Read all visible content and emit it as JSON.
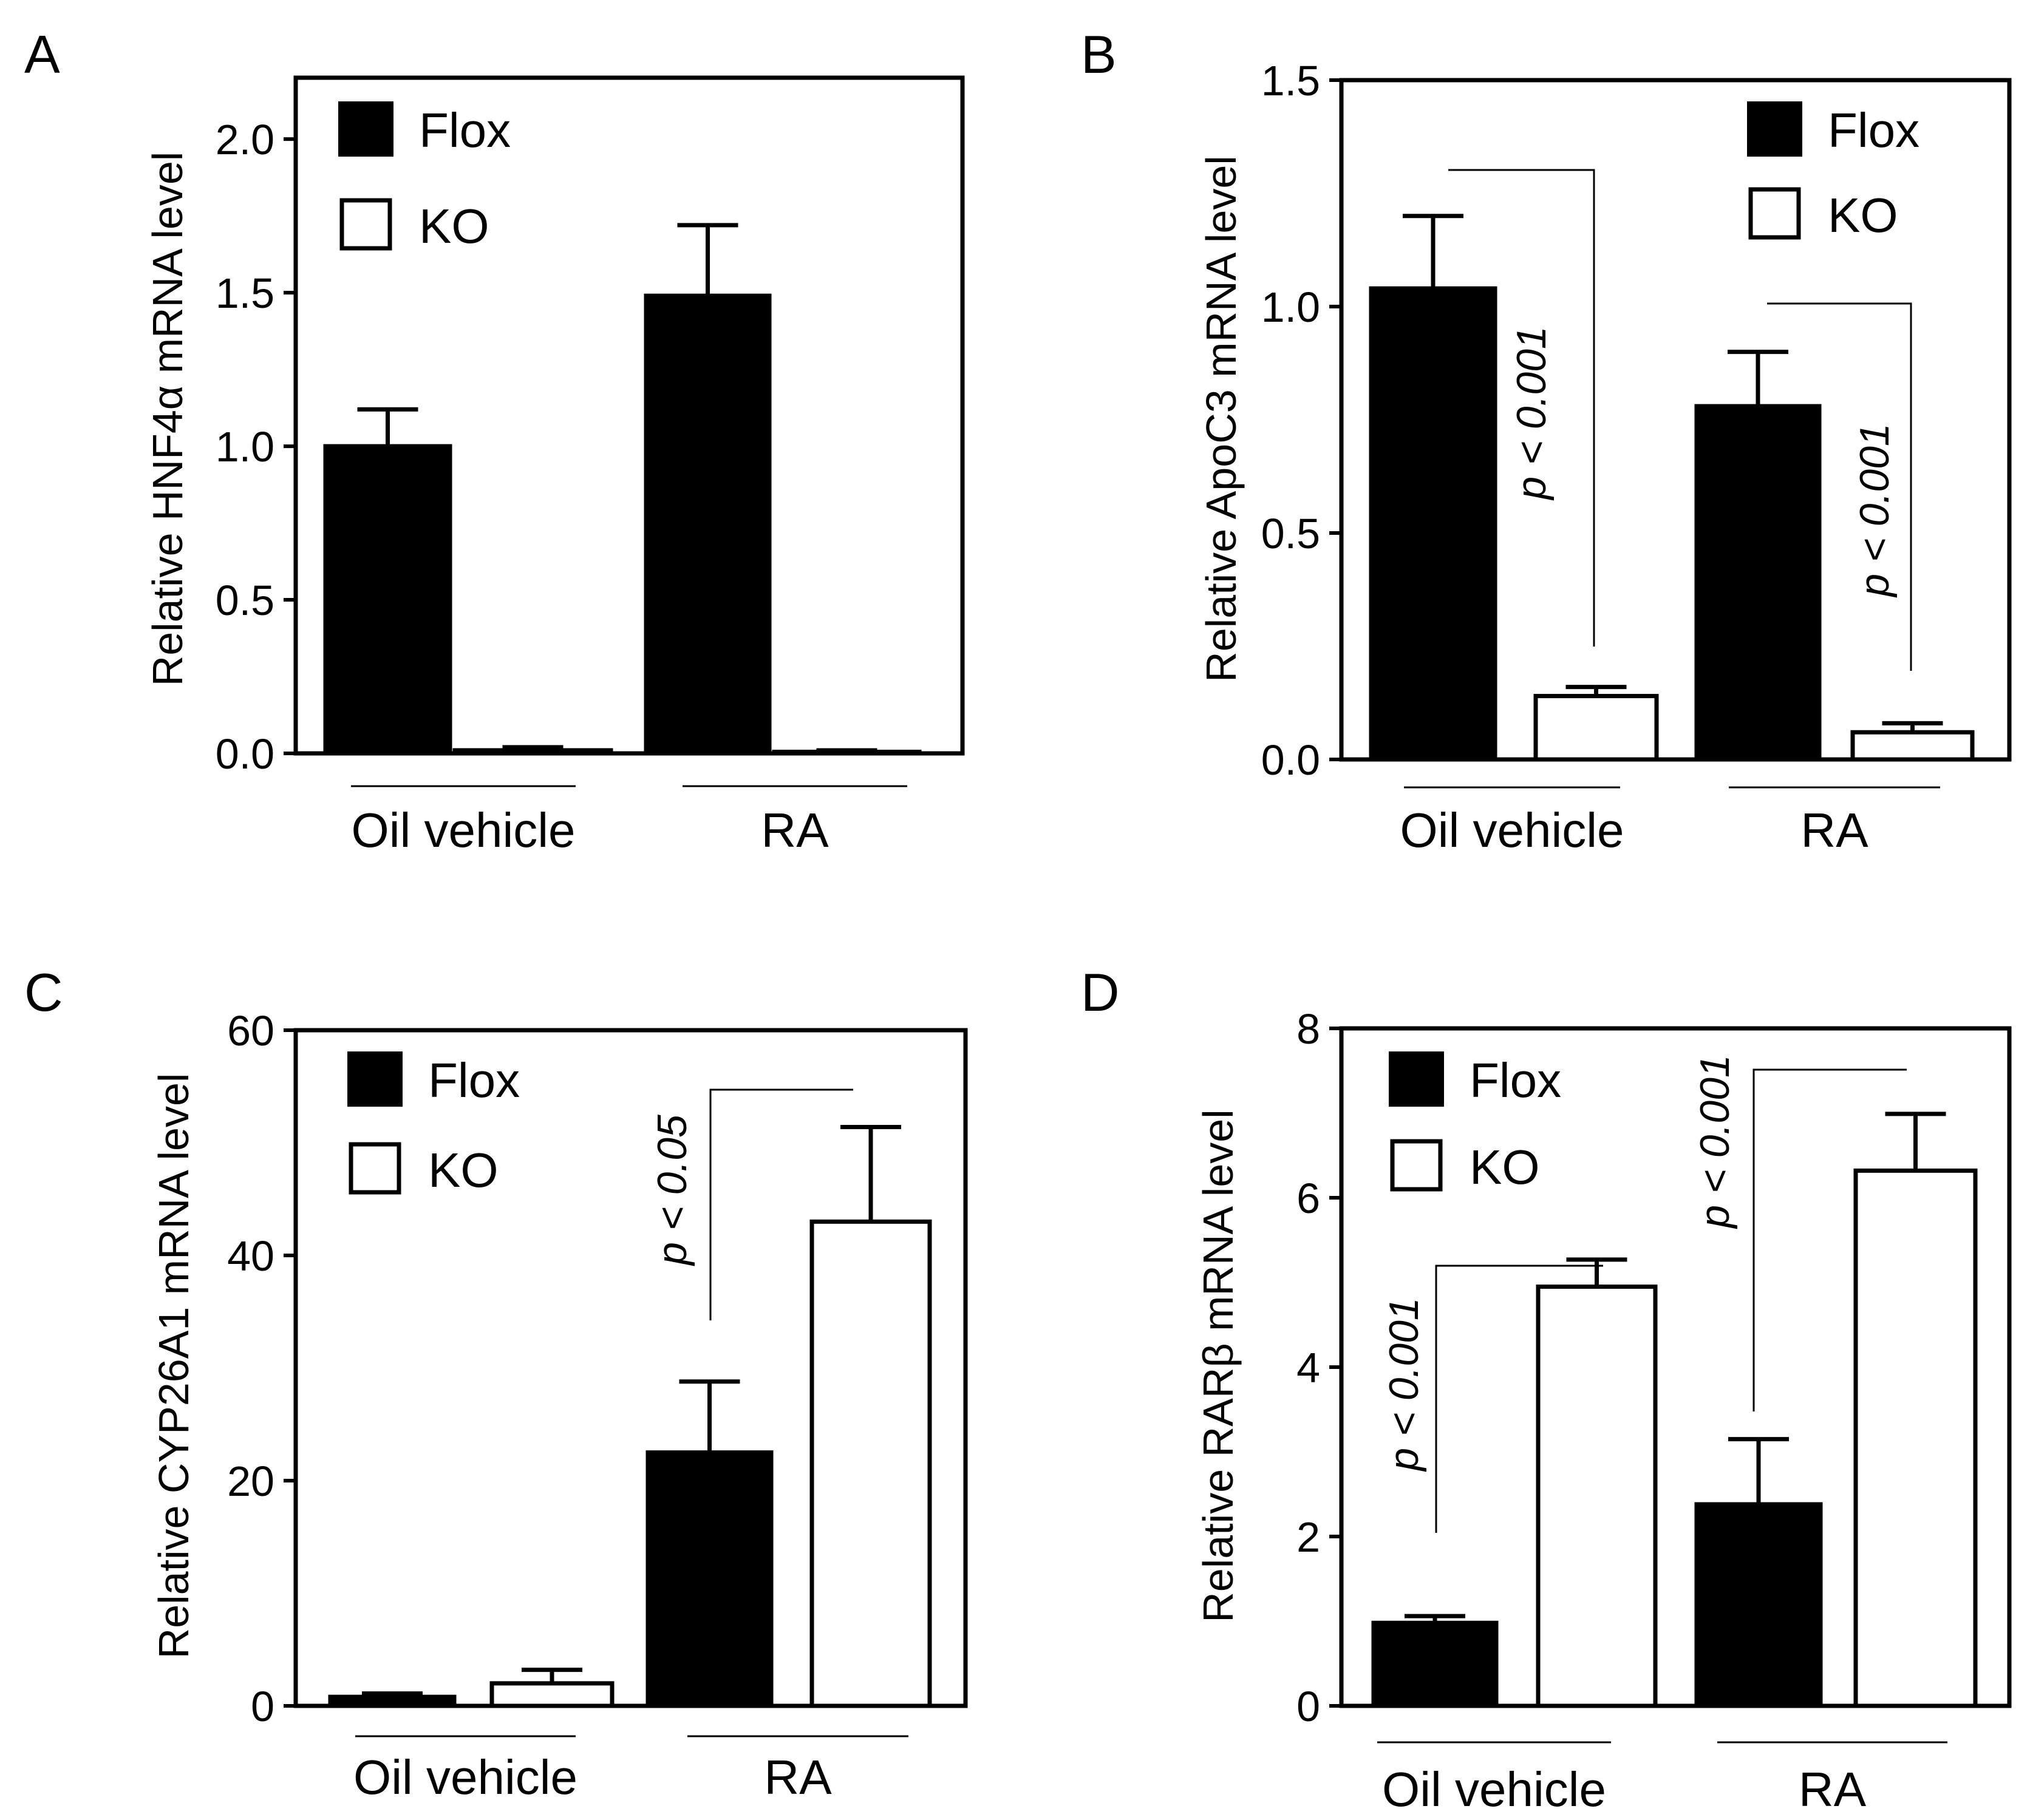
{
  "figure": {
    "panels": [
      "A",
      "B",
      "C",
      "D"
    ]
  },
  "legend": {
    "flox_label": "Flox",
    "ko_label": "KO",
    "flox_color": "#000000",
    "ko_color": "#ffffff"
  },
  "chart_data": [
    {
      "panel": "A",
      "type": "bar",
      "title": "",
      "ylabel": "Relative HNF4α mRNA level",
      "ylim": [
        0,
        2.2
      ],
      "yticks": [
        0.0,
        0.5,
        1.0,
        1.5,
        2.0
      ],
      "ytick_labels": [
        "0.0",
        "0.5",
        "1.0",
        "1.5",
        "2.0"
      ],
      "groups": [
        "Oil vehicle",
        "RA"
      ],
      "legend_position": "top-left",
      "series": [
        {
          "name": "Flox",
          "values": [
            1.0,
            1.49
          ],
          "errors": [
            0.12,
            0.23
          ]
        },
        {
          "name": "KO",
          "values": [
            0.01,
            0.005
          ],
          "errors": [
            0.01,
            0.005
          ]
        }
      ],
      "annotations": []
    },
    {
      "panel": "B",
      "type": "bar",
      "title": "",
      "ylabel": "Relative ApoC3 mRNA level",
      "ylim": [
        0,
        1.5
      ],
      "yticks": [
        0.0,
        0.5,
        1.0,
        1.5
      ],
      "ytick_labels": [
        "0.0",
        "0.5",
        "1.0",
        "1.5"
      ],
      "groups": [
        "Oil vehicle",
        "RA"
      ],
      "legend_position": "top-right",
      "series": [
        {
          "name": "Flox",
          "values": [
            1.04,
            0.78
          ],
          "errors": [
            0.16,
            0.12
          ]
        },
        {
          "name": "KO",
          "values": [
            0.14,
            0.06
          ],
          "errors": [
            0.02,
            0.02
          ]
        }
      ],
      "annotations": [
        {
          "text": "p < 0.001",
          "group": 0
        },
        {
          "text": "p < 0.001",
          "group": 1
        }
      ]
    },
    {
      "panel": "C",
      "type": "bar",
      "title": "",
      "ylabel": "Relative CYP26A1 mRNA level",
      "ylim": [
        0,
        60
      ],
      "yticks": [
        0,
        20,
        40,
        60
      ],
      "ytick_labels": [
        "0",
        "20",
        "40",
        "60"
      ],
      "groups": [
        "Oil vehicle",
        "RA"
      ],
      "legend_position": "top-left",
      "series": [
        {
          "name": "Flox",
          "values": [
            0.8,
            22.5
          ],
          "errors": [
            0.3,
            6.3
          ]
        },
        {
          "name": "KO",
          "values": [
            2.0,
            43.0
          ],
          "errors": [
            1.2,
            8.4
          ]
        }
      ],
      "annotations": [
        {
          "text": "p < 0.05",
          "group": 1
        }
      ]
    },
    {
      "panel": "D",
      "type": "bar",
      "title": "",
      "ylabel": "Relative RARβ mRNA level",
      "ylim": [
        0,
        8
      ],
      "yticks": [
        0,
        2,
        4,
        6,
        8
      ],
      "ytick_labels": [
        "0",
        "2",
        "4",
        "6",
        "8"
      ],
      "groups": [
        "Oil vehicle",
        "RA"
      ],
      "legend_position": "top-left",
      "series": [
        {
          "name": "Flox",
          "values": [
            0.98,
            2.38
          ],
          "errors": [
            0.08,
            0.77
          ]
        },
        {
          "name": "KO",
          "values": [
            4.95,
            6.32
          ],
          "errors": [
            0.32,
            0.67
          ]
        }
      ],
      "annotations": [
        {
          "text": "p < 0.001",
          "group": 0
        },
        {
          "text": "p < 0.001",
          "group": 1
        }
      ]
    }
  ]
}
